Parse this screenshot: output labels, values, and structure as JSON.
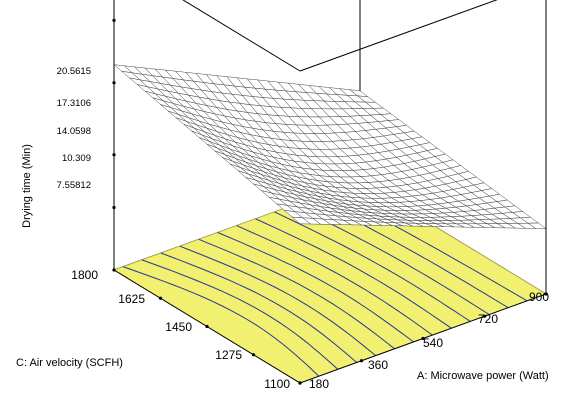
{
  "chart_data": {
    "type": "surface3d",
    "title": "",
    "xlabel": "A: Microwave power (Watt)",
    "ylabel": "C: Air velocity (SCFH)",
    "zlabel": "Drying time (Min)",
    "x_ticks": [
      "180",
      "360",
      "540",
      "720",
      "900"
    ],
    "y_ticks": [
      "1100",
      "1275",
      "1450",
      "1625",
      "1800"
    ],
    "z_ticks": [
      "7.55812",
      "10.309",
      "14.0598",
      "17.3106",
      "20.5615"
    ],
    "x_range": [
      180,
      900
    ],
    "y_range": [
      1100,
      1800
    ],
    "z_range": [
      4.3,
      20.5615
    ],
    "surface_corners": {
      "x180_y1800": 15.0,
      "x900_y1800": 9.0,
      "x180_y1100": 12.6,
      "x900_y1100": 7.7
    },
    "floor_contour_count": 12,
    "colors": {
      "floor": "#f1f071",
      "contour": "#2a3a8c",
      "mesh": "#333333",
      "box": "#000000"
    }
  }
}
